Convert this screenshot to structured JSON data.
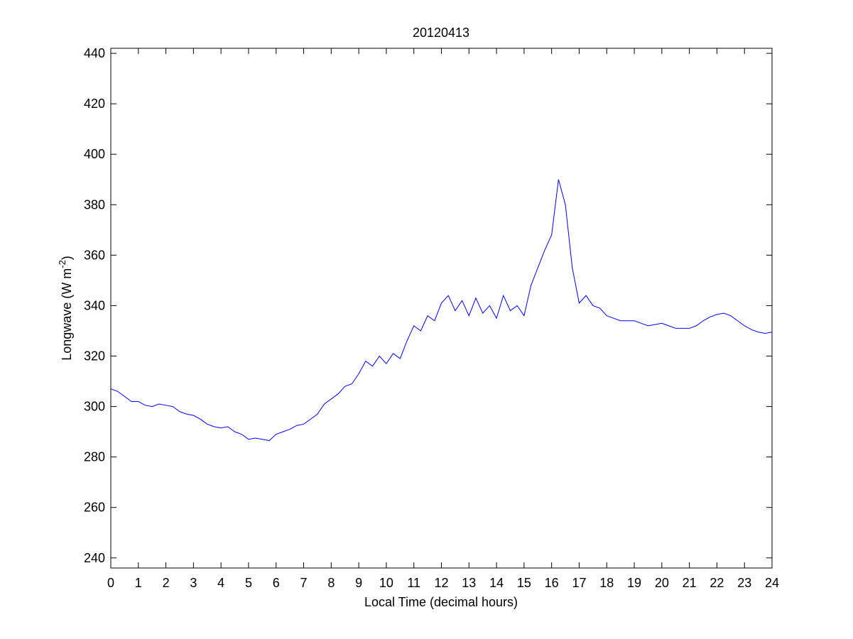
{
  "chart_data": {
    "type": "line",
    "title": "20120413",
    "x_label": "Local Time (decimal hours)",
    "y_label": "Longwave (W m",
    "y_label_superscript": "-2",
    "y_label_end": ")",
    "x": [
      0,
      0.25,
      0.5,
      0.75,
      1,
      1.25,
      1.5,
      1.75,
      2,
      2.25,
      2.5,
      2.75,
      3,
      3.25,
      3.5,
      3.75,
      4,
      4.25,
      4.5,
      4.75,
      5,
      5.25,
      5.5,
      5.75,
      6,
      6.25,
      6.5,
      6.75,
      7,
      7.25,
      7.5,
      7.75,
      8,
      8.25,
      8.5,
      8.75,
      9,
      9.25,
      9.5,
      9.75,
      10,
      10.25,
      10.5,
      10.75,
      11,
      11.25,
      11.5,
      11.75,
      12,
      12.25,
      12.5,
      12.75,
      13,
      13.25,
      13.5,
      13.75,
      14,
      14.25,
      14.5,
      14.75,
      15,
      15.25,
      15.5,
      15.75,
      16,
      16.25,
      16.5,
      16.75,
      17,
      17.25,
      17.5,
      17.75,
      18,
      18.25,
      18.5,
      18.75,
      19,
      19.25,
      19.5,
      19.75,
      20,
      20.25,
      20.5,
      20.75,
      21,
      21.25,
      21.5,
      21.75,
      22,
      22.25,
      22.5,
      22.75,
      23,
      23.25,
      23.5,
      23.75,
      24
    ],
    "series": [
      {
        "name": "Longwave",
        "color": "#0000ff",
        "values": [
          307,
          306,
          304,
          302,
          302,
          300.5,
          300,
          301,
          300.5,
          300,
          298,
          297,
          296.5,
          295,
          293,
          292,
          291.5,
          292,
          290,
          289,
          287,
          287.5,
          287,
          286.5,
          289,
          290,
          291,
          292.5,
          293,
          295,
          297,
          301,
          303,
          305,
          308,
          309,
          313,
          318,
          316,
          320,
          317,
          321,
          319,
          326,
          332,
          330,
          336,
          334,
          341,
          344,
          338,
          342,
          336,
          343,
          337,
          340,
          335,
          344,
          338,
          340,
          336,
          348,
          355,
          362,
          368,
          390,
          380,
          355,
          341,
          344,
          340,
          339,
          336,
          335,
          334,
          334,
          334,
          333,
          332,
          332.5,
          333,
          332,
          331,
          331,
          331,
          332,
          334,
          335.5,
          336.5,
          337,
          336,
          334,
          332,
          330.5,
          329.5,
          329,
          329.5
        ]
      }
    ],
    "xlim": [
      0,
      24
    ],
    "xticks": [
      0,
      1,
      2,
      3,
      4,
      5,
      6,
      7,
      8,
      9,
      10,
      11,
      12,
      13,
      14,
      15,
      16,
      17,
      18,
      19,
      20,
      21,
      22,
      23,
      24
    ],
    "ylim": [
      236,
      442
    ],
    "yticks": [
      240,
      260,
      280,
      300,
      320,
      340,
      360,
      380,
      400,
      420,
      440
    ]
  }
}
